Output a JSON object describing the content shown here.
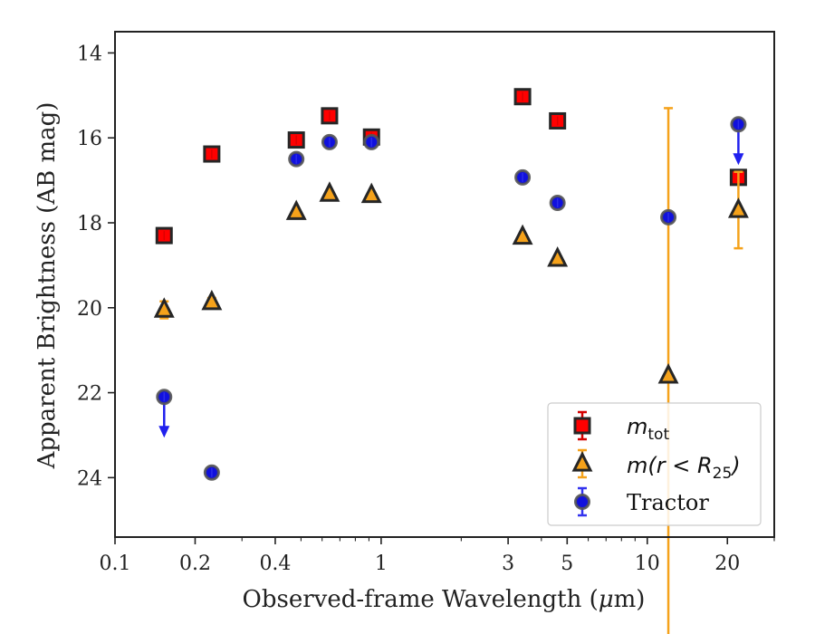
{
  "chart_data": {
    "type": "scatter",
    "xlabel_pre": "Observed-frame Wavelength (",
    "xlabel_mu": "μ",
    "xlabel_post": "m)",
    "ylabel": "Apparent Brightness (AB mag)",
    "xscale": "log",
    "xlim": [
      0.1,
      30
    ],
    "ylim": [
      25.4,
      13.5
    ],
    "y_inverted": true,
    "grid": false,
    "legend_position": "lower-right",
    "x_ticks": [
      {
        "value": 0.1,
        "label": "0.1"
      },
      {
        "value": 0.2,
        "label": "0.2"
      },
      {
        "value": 0.4,
        "label": "0.4"
      },
      {
        "value": 1,
        "label": "1"
      },
      {
        "value": 3,
        "label": "3"
      },
      {
        "value": 5,
        "label": "5"
      },
      {
        "value": 10,
        "label": "10"
      },
      {
        "value": 20,
        "label": "20"
      }
    ],
    "y_ticks": [
      {
        "value": 14,
        "label": "14"
      },
      {
        "value": 16,
        "label": "16"
      },
      {
        "value": 18,
        "label": "18"
      },
      {
        "value": 20,
        "label": "20"
      },
      {
        "value": 22,
        "label": "22"
      },
      {
        "value": 24,
        "label": "24"
      }
    ],
    "series": [
      {
        "name_math": "m",
        "name_sub": "tot",
        "marker": "square",
        "color": "#ff0000",
        "errcolor": "#d40000",
        "points": [
          {
            "x": 0.153,
            "y": 18.3,
            "err": 0
          },
          {
            "x": 0.231,
            "y": 16.38,
            "err": 0
          },
          {
            "x": 0.48,
            "y": 16.05,
            "err": 0
          },
          {
            "x": 0.64,
            "y": 15.48,
            "err": 0
          },
          {
            "x": 0.92,
            "y": 15.98,
            "err": 0
          },
          {
            "x": 3.4,
            "y": 15.03,
            "err": 0
          },
          {
            "x": 4.6,
            "y": 15.6,
            "err": 0
          },
          {
            "x": 22.0,
            "y": 16.93,
            "err": 0
          }
        ]
      },
      {
        "name_math": "m(r < R",
        "name_sub": "25",
        "name_tail": ")",
        "marker": "triangle",
        "color": "#f5a21b",
        "errcolor": "#f5a21b",
        "points": [
          {
            "x": 0.153,
            "y": 20.05,
            "err": 0.2
          },
          {
            "x": 0.231,
            "y": 19.87,
            "err": 0.1
          },
          {
            "x": 0.48,
            "y": 17.75,
            "err": 0
          },
          {
            "x": 0.64,
            "y": 17.32,
            "err": 0
          },
          {
            "x": 0.92,
            "y": 17.35,
            "err": 0
          },
          {
            "x": 3.4,
            "y": 18.33,
            "err": 0
          },
          {
            "x": 4.6,
            "y": 18.85,
            "err": 0
          },
          {
            "x": 12.0,
            "y": 21.6,
            "err": 6.3
          },
          {
            "x": 22.0,
            "y": 17.7,
            "err": 0.9
          }
        ]
      },
      {
        "name": "Tractor",
        "marker": "circle",
        "color": "#1111dd",
        "errcolor": "#3333ee",
        "points": [
          {
            "x": 0.153,
            "y": 22.1,
            "err": 0,
            "upper_limit": true
          },
          {
            "x": 0.231,
            "y": 23.88,
            "err": 0
          },
          {
            "x": 0.48,
            "y": 16.5,
            "err": 0
          },
          {
            "x": 0.64,
            "y": 16.1,
            "err": 0
          },
          {
            "x": 0.92,
            "y": 16.1,
            "err": 0
          },
          {
            "x": 3.4,
            "y": 16.93,
            "err": 0
          },
          {
            "x": 4.6,
            "y": 17.53,
            "err": 0
          },
          {
            "x": 12.0,
            "y": 17.87,
            "err": 0
          },
          {
            "x": 22.0,
            "y": 15.68,
            "err": 0,
            "upper_limit": true
          }
        ]
      }
    ]
  }
}
